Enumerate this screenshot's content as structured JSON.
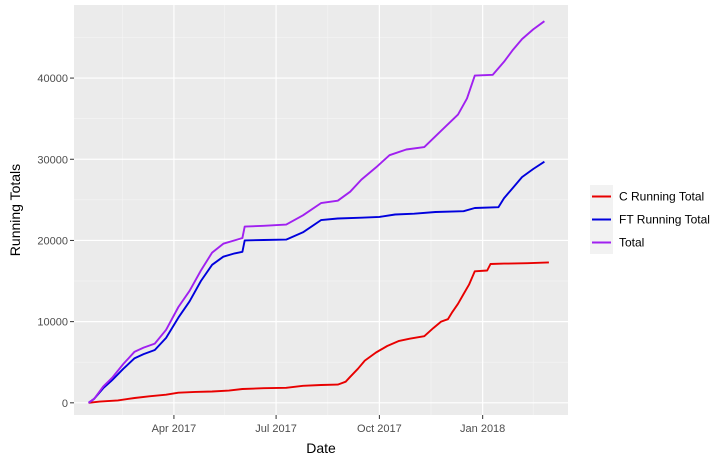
{
  "chart_data": {
    "type": "line",
    "title": "",
    "xlabel": "Date",
    "ylabel": "Running Totals",
    "x_axis_kind": "date",
    "xlim": [
      "2017-01-02",
      "2018-03-18"
    ],
    "ylim": [
      -1500,
      49000
    ],
    "x_ticks": [
      {
        "date": "2017-04-01",
        "label": "Apr 2017"
      },
      {
        "date": "2017-07-01",
        "label": "Jul 2017"
      },
      {
        "date": "2017-10-01",
        "label": "Oct 2017"
      },
      {
        "date": "2018-01-01",
        "label": "Jan 2018"
      }
    ],
    "y_ticks": [
      0,
      10000,
      20000,
      30000,
      40000
    ],
    "y_tick_labels": [
      "0",
      "10000",
      "20000",
      "30000",
      "40000"
    ],
    "x_minor_ticks": [
      "2017-02-14",
      "2017-05-16",
      "2017-08-16",
      "2017-11-16",
      "2018-02-15"
    ],
    "y_minor_ticks": [
      5000,
      15000,
      25000,
      35000,
      45000
    ],
    "grid": true,
    "legend_position": "right",
    "series": [
      {
        "name": "C Running Total",
        "color": "#e80000",
        "points": [
          [
            "2017-01-15",
            0
          ],
          [
            "2017-01-25",
            150
          ],
          [
            "2017-02-10",
            300
          ],
          [
            "2017-02-25",
            600
          ],
          [
            "2017-03-10",
            800
          ],
          [
            "2017-03-25",
            1000
          ],
          [
            "2017-04-05",
            1250
          ],
          [
            "2017-04-20",
            1350
          ],
          [
            "2017-05-05",
            1400
          ],
          [
            "2017-05-20",
            1500
          ],
          [
            "2017-06-01",
            1700
          ],
          [
            "2017-06-20",
            1800
          ],
          [
            "2017-07-10",
            1850
          ],
          [
            "2017-07-25",
            2100
          ],
          [
            "2017-08-10",
            2200
          ],
          [
            "2017-08-25",
            2250
          ],
          [
            "2017-09-01",
            2600
          ],
          [
            "2017-09-05",
            3200
          ],
          [
            "2017-09-12",
            4200
          ],
          [
            "2017-09-18",
            5200
          ],
          [
            "2017-09-28",
            6200
          ],
          [
            "2017-10-08",
            7000
          ],
          [
            "2017-10-18",
            7600
          ],
          [
            "2017-10-28",
            7900
          ],
          [
            "2017-11-10",
            8200
          ],
          [
            "2017-11-18",
            9200
          ],
          [
            "2017-11-25",
            10000
          ],
          [
            "2017-12-01",
            10300
          ],
          [
            "2017-12-05",
            11200
          ],
          [
            "2017-12-10",
            12200
          ],
          [
            "2017-12-15",
            13400
          ],
          [
            "2017-12-20",
            14600
          ],
          [
            "2017-12-25",
            16200
          ],
          [
            "2018-01-05",
            16300
          ],
          [
            "2018-01-08",
            17100
          ],
          [
            "2018-01-20",
            17150
          ],
          [
            "2018-02-10",
            17200
          ],
          [
            "2018-03-01",
            17300
          ]
        ]
      },
      {
        "name": "FT Running Total",
        "color": "#0000dd",
        "points": [
          [
            "2017-01-15",
            0
          ],
          [
            "2017-01-20",
            500
          ],
          [
            "2017-01-28",
            1800
          ],
          [
            "2017-02-05",
            2800
          ],
          [
            "2017-02-15",
            4200
          ],
          [
            "2017-02-25",
            5500
          ],
          [
            "2017-03-05",
            6000
          ],
          [
            "2017-03-15",
            6500
          ],
          [
            "2017-03-25",
            8000
          ],
          [
            "2017-04-05",
            10500
          ],
          [
            "2017-04-15",
            12500
          ],
          [
            "2017-04-25",
            15000
          ],
          [
            "2017-05-05",
            17000
          ],
          [
            "2017-05-15",
            18000
          ],
          [
            "2017-05-25",
            18400
          ],
          [
            "2017-06-01",
            18600
          ],
          [
            "2017-06-03",
            20000
          ],
          [
            "2017-06-20",
            20050
          ],
          [
            "2017-07-10",
            20100
          ],
          [
            "2017-07-25",
            21000
          ],
          [
            "2017-08-10",
            22500
          ],
          [
            "2017-08-25",
            22700
          ],
          [
            "2017-09-15",
            22800
          ],
          [
            "2017-10-01",
            22900
          ],
          [
            "2017-10-15",
            23200
          ],
          [
            "2017-11-01",
            23300
          ],
          [
            "2017-11-20",
            23500
          ],
          [
            "2017-12-15",
            23600
          ],
          [
            "2017-12-25",
            24000
          ],
          [
            "2018-01-15",
            24100
          ],
          [
            "2018-01-20",
            25200
          ],
          [
            "2018-01-28",
            26500
          ],
          [
            "2018-02-05",
            27800
          ],
          [
            "2018-02-15",
            28800
          ],
          [
            "2018-02-25",
            29700
          ]
        ]
      },
      {
        "name": "Total",
        "color": "#a020f0",
        "points": [
          [
            "2017-01-15",
            0
          ],
          [
            "2017-01-20",
            500
          ],
          [
            "2017-01-28",
            2000
          ],
          [
            "2017-02-05",
            3100
          ],
          [
            "2017-02-15",
            4800
          ],
          [
            "2017-02-25",
            6300
          ],
          [
            "2017-03-05",
            6800
          ],
          [
            "2017-03-15",
            7300
          ],
          [
            "2017-03-25",
            9000
          ],
          [
            "2017-04-05",
            11800
          ],
          [
            "2017-04-15",
            13800
          ],
          [
            "2017-04-25",
            16300
          ],
          [
            "2017-05-05",
            18500
          ],
          [
            "2017-05-15",
            19600
          ],
          [
            "2017-05-25",
            20000
          ],
          [
            "2017-06-01",
            20300
          ],
          [
            "2017-06-03",
            21700
          ],
          [
            "2017-06-20",
            21800
          ],
          [
            "2017-07-10",
            21950
          ],
          [
            "2017-07-25",
            23100
          ],
          [
            "2017-08-10",
            24600
          ],
          [
            "2017-08-25",
            24900
          ],
          [
            "2017-09-05",
            26000
          ],
          [
            "2017-09-15",
            27500
          ],
          [
            "2017-09-28",
            29000
          ],
          [
            "2017-10-10",
            30500
          ],
          [
            "2017-10-25",
            31200
          ],
          [
            "2017-11-10",
            31500
          ],
          [
            "2017-11-25",
            33500
          ],
          [
            "2017-12-10",
            35500
          ],
          [
            "2017-12-18",
            37500
          ],
          [
            "2017-12-25",
            40300
          ],
          [
            "2018-01-10",
            40400
          ],
          [
            "2018-01-20",
            42000
          ],
          [
            "2018-01-28",
            43500
          ],
          [
            "2018-02-05",
            44800
          ],
          [
            "2018-02-15",
            46000
          ],
          [
            "2018-02-25",
            47000
          ]
        ]
      }
    ]
  }
}
